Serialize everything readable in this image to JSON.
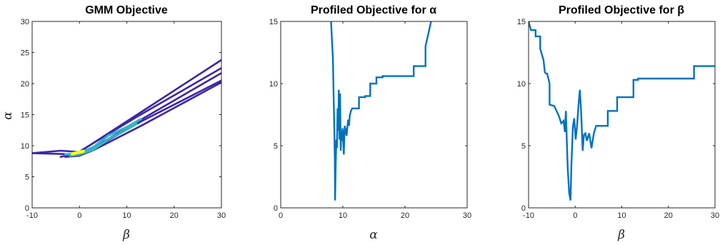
{
  "chart_data": [
    {
      "type": "line",
      "plot_kind": "contour",
      "title": "GMM Objective",
      "xlabel": "β",
      "ylabel": "α",
      "xlim": [
        -10,
        30
      ],
      "ylim": [
        0,
        30
      ],
      "xticks": [
        "-10",
        "0",
        "10",
        "20",
        "30"
      ],
      "yticks": [
        "0",
        "5",
        "10",
        "15",
        "20",
        "25",
        "30"
      ],
      "grid": false,
      "colors": {
        "outer": "#3e26a8",
        "mid": "#31b6c9",
        "inner": "#f9fb0e"
      },
      "series": [
        {
          "level": "outer",
          "x": [
            -10,
            -4,
            0,
            13,
            30
          ],
          "y": [
            8.8,
            9.2,
            9.0,
            15.4,
            23.8
          ]
        },
        {
          "level": "outer",
          "x": [
            -10,
            -5,
            -1,
            12,
            30
          ],
          "y": [
            8.8,
            8.7,
            8.6,
            14.6,
            22.5
          ]
        },
        {
          "level": "outer",
          "x": [
            -4,
            -2,
            1,
            13,
            30
          ],
          "y": [
            8.2,
            8.6,
            8.8,
            14.2,
            21.7
          ]
        },
        {
          "level": "outer",
          "x": [
            -3,
            0,
            2,
            13,
            30
          ],
          "y": [
            8.4,
            8.5,
            9.1,
            13.9,
            20.5
          ]
        },
        {
          "level": "outer",
          "x": [
            -3,
            0,
            3,
            13,
            30
          ],
          "y": [
            8.2,
            8.4,
            9.3,
            13.2,
            20.2
          ]
        },
        {
          "level": "mid",
          "x": [
            -3,
            0,
            3,
            6,
            10,
            13
          ],
          "y": [
            8.6,
            8.8,
            9.8,
            11.6,
            13.0,
            14.3
          ]
        },
        {
          "level": "mid",
          "x": [
            -2,
            0,
            3,
            6,
            10,
            12
          ],
          "y": [
            8.4,
            8.6,
            9.4,
            11.0,
            12.6,
            13.5
          ]
        },
        {
          "level": "inner",
          "x": [
            -1.5,
            -0.5,
            0.8
          ],
          "y": [
            8.7,
            8.9,
            9.1
          ]
        }
      ]
    },
    {
      "type": "line",
      "title": "Profiled Objective for α",
      "xlabel": "α",
      "ylabel": "",
      "xlim": [
        0,
        30
      ],
      "ylim": [
        0,
        15
      ],
      "xticks": [
        "0",
        "10",
        "20",
        "30"
      ],
      "yticks": [
        "0",
        "5",
        "10",
        "15"
      ],
      "grid": false,
      "color": "#0072bd",
      "x": [
        8.1,
        8.2,
        8.4,
        8.5,
        8.6,
        8.7,
        8.75,
        8.85,
        8.95,
        9.05,
        9.15,
        9.25,
        9.35,
        9.45,
        9.55,
        9.65,
        9.75,
        9.85,
        9.95,
        10.05,
        10.15,
        10.3,
        10.45,
        10.6,
        10.75,
        10.85,
        11.0,
        11.1,
        11.3,
        11.5,
        12.0,
        12.6,
        12.6,
        13.6,
        13.6,
        14.4,
        14.4,
        15.4,
        15.4,
        16.4,
        16.4,
        21.4,
        21.4,
        23.3,
        23.3,
        24.2
      ],
      "y": [
        15.0,
        14.0,
        12.0,
        9.5,
        7.0,
        4.0,
        0.6,
        3.5,
        5.5,
        4.8,
        8.0,
        6.2,
        9.5,
        5.5,
        9.2,
        4.6,
        6.2,
        5.4,
        6.4,
        5.4,
        4.3,
        6.6,
        6.3,
        5.8,
        6.6,
        7.1,
        6.6,
        7.4,
        7.8,
        8.0,
        8.0,
        8.0,
        8.9,
        8.9,
        9.0,
        9.0,
        10.0,
        10.0,
        10.5,
        10.5,
        10.6,
        10.6,
        11.4,
        11.4,
        13.0,
        15.0
      ]
    },
    {
      "type": "line",
      "title": "Profiled Objective for β",
      "xlabel": "β",
      "ylabel": "",
      "xlim": [
        -10,
        30
      ],
      "ylim": [
        0,
        15
      ],
      "xticks": [
        "-10",
        "0",
        "10",
        "20",
        "30"
      ],
      "yticks": [
        "0",
        "5",
        "10",
        "15"
      ],
      "grid": false,
      "color": "#0072bd",
      "x": [
        -10,
        -9.5,
        -8.5,
        -8.5,
        -7.5,
        -7.5,
        -6.8,
        -6.5,
        -6.2,
        -6.0,
        -5.5,
        -5.5,
        -4.5,
        -4.0,
        -3.5,
        -3.0,
        -2.5,
        -2.2,
        -2.0,
        -1.6,
        -1.3,
        -1.0,
        -0.8,
        -0.5,
        -0.2,
        0.1,
        0.4,
        0.7,
        1.0,
        1.3,
        1.6,
        1.9,
        2.2,
        2.5,
        3.0,
        3.5,
        4.0,
        4.5,
        5.0,
        7.0,
        7.0,
        9.0,
        9.0,
        12.5,
        12.5,
        13.5,
        13.5,
        25.5,
        25.5,
        30
      ],
      "y": [
        15.0,
        14.3,
        14.3,
        13.8,
        13.8,
        12.8,
        11.9,
        10.9,
        10.8,
        10.8,
        10.0,
        8.3,
        8.2,
        7.8,
        7.4,
        6.8,
        7.0,
        6.1,
        7.8,
        3.2,
        1.2,
        0.6,
        3.5,
        6.5,
        7.2,
        5.5,
        6.6,
        8.2,
        9.5,
        7.6,
        4.6,
        5.9,
        6.0,
        5.4,
        6.0,
        4.8,
        6.0,
        6.6,
        6.6,
        6.6,
        7.8,
        7.8,
        8.9,
        8.9,
        10.3,
        10.3,
        10.4,
        10.4,
        11.4,
        11.4
      ]
    }
  ]
}
